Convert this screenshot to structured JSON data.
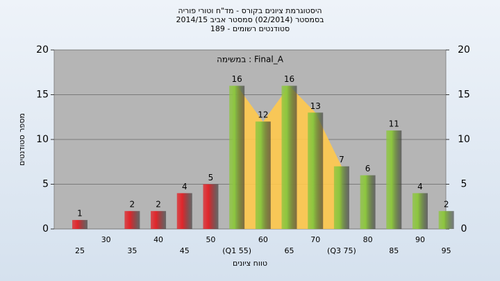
{
  "chart_data": {
    "type": "bar",
    "title": "היסטוגרמת ציונים בקורס - מד\"ח וטורי פוריה",
    "subtitle": "בסמסטר  (02/2014)  סמסטר אביב 2014/15",
    "subtitle2": "סטודנטים רשומים - 189",
    "annotation": "במשימה : Final_A",
    "y_label": "מספר סטודנטים",
    "x_label": "טווח ציונים",
    "categories": [
      "25",
      "30",
      "35",
      "40",
      "45",
      "50",
      "(Q1 55)",
      "60",
      "65",
      "70",
      "(Q3 75)",
      "80",
      "85",
      "90",
      "95"
    ],
    "values": [
      1,
      null,
      2,
      2,
      4,
      5,
      16,
      12,
      16,
      13,
      7,
      6,
      11,
      4,
      2
    ],
    "colors": [
      "#e0262b",
      "#e0262b",
      "#e0262b",
      "#e0262b",
      "#e0262b",
      "#e0262b",
      "#8dc63f",
      "#8dc63f",
      "#8dc63f",
      "#8dc63f",
      "#8dc63f",
      "#8dc63f",
      "#8dc63f",
      "#8dc63f",
      "#8dc63f"
    ],
    "band_color": "#ffc94d",
    "ylim": [
      0,
      20
    ],
    "yticks": [
      0,
      5,
      10,
      15,
      20
    ],
    "y2lim": [
      0,
      20
    ],
    "y2ticks": [
      0,
      5,
      10,
      15,
      20
    ],
    "grid": true
  }
}
